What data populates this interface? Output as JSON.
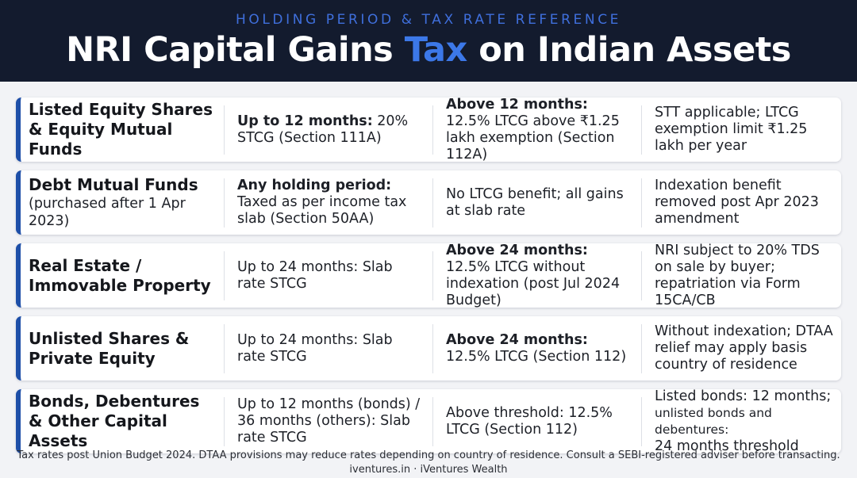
{
  "header": {
    "kicker": "HOLDING PERIOD & TAX RATE REFERENCE",
    "title_pre": "NRI Capital Gains ",
    "title_accent": "Tax",
    "title_post": " on Indian Assets"
  },
  "colors": {
    "header_bg": "#131b2e",
    "accent": "#3c78e8",
    "row_bar": "#1e4fa8"
  },
  "rows": [
    {
      "asset": "Listed Equity Shares & Equity Mutual Funds",
      "asset_sub": "",
      "short_bold": "Up to 12 months:",
      "short_rest": " 20% STCG (Section 111A)",
      "long_bold": "Above 12 months:",
      "long_rest": " 12.5% LTCG above ₹1.25 lakh exemption (Section 112A)",
      "notes": "STT applicable; LTCG exemption limit ₹1.25 lakh per year"
    },
    {
      "asset": "Debt Mutual Funds",
      "asset_sub": "(purchased after 1 Apr 2023)",
      "short_bold": "Any holding period:",
      "short_rest": " Taxed as per income tax slab (Section 50AA)",
      "long_bold": "",
      "long_rest": "No LTCG benefit; all gains at slab rate",
      "notes": "Indexation benefit removed post Apr 2023 amendment"
    },
    {
      "asset": "Real Estate / Immovable Property",
      "asset_sub": "",
      "short_bold": "",
      "short_rest": "Up to 24 months: Slab rate STCG",
      "long_bold": "Above 24 months:",
      "long_rest": " 12.5% LTCG without indexation (post Jul 2024 Budget)",
      "notes": "NRI subject to 20% TDS on sale by buyer; repatriation via Form 15CA/CB"
    },
    {
      "asset": "Unlisted Shares & Private Equity",
      "asset_sub": "",
      "short_bold": "",
      "short_rest": "Up to 24 months: Slab rate STCG",
      "long_bold": "Above 24 months:",
      "long_rest": " 12.5% LTCG (Section 112)",
      "notes": "Without indexation; DTAA relief may apply basis country of residence"
    },
    {
      "asset": "Bonds, Debentures & Other Capital Assets",
      "asset_sub": "",
      "short_bold": "",
      "short_rest": "Up to 12 months (bonds) / 36 months (others): Slab rate STCG",
      "long_bold": "",
      "long_rest": "Above threshold: 12.5% LTCG (Section 112)",
      "notes_line1": "Listed bonds: 12 months;",
      "notes_line2": "unlisted bonds and debentures:",
      "notes_line3": "24 months threshold"
    }
  ],
  "footer": {
    "disclaimer": "Tax rates post Union Budget 2024. DTAA provisions may reduce rates depending on country of residence. Consult a SEBI-registered adviser before transacting.",
    "credit": "iventures.in · iVentures Wealth"
  }
}
